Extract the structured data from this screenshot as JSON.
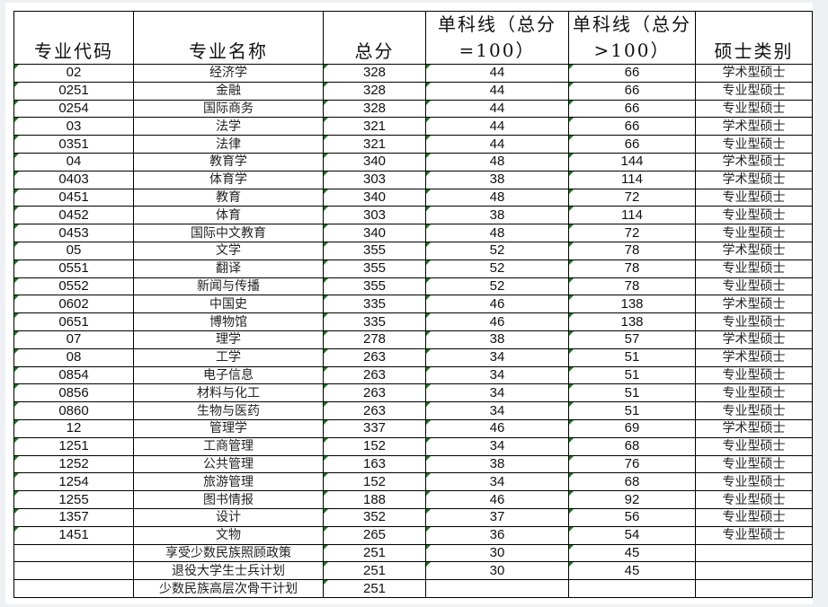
{
  "headers": [
    "专业代码",
    "专业名称",
    "总分",
    "单科线（总分=100）",
    "单科线（总分>100）",
    "硕士类别"
  ],
  "rows": [
    [
      "02",
      "经济学",
      "328",
      "44",
      "66",
      "学术型硕士"
    ],
    [
      "0251",
      "金融",
      "328",
      "44",
      "66",
      "专业型硕士"
    ],
    [
      "0254",
      "国际商务",
      "328",
      "44",
      "66",
      "专业型硕士"
    ],
    [
      "03",
      "法学",
      "321",
      "44",
      "66",
      "学术型硕士"
    ],
    [
      "0351",
      "法律",
      "321",
      "44",
      "66",
      "专业型硕士"
    ],
    [
      "04",
      "教育学",
      "340",
      "48",
      "144",
      "学术型硕士"
    ],
    [
      "0403",
      "体育学",
      "303",
      "38",
      "114",
      "学术型硕士"
    ],
    [
      "0451",
      "教育",
      "340",
      "48",
      "72",
      "专业型硕士"
    ],
    [
      "0452",
      "体育",
      "303",
      "38",
      "114",
      "专业型硕士"
    ],
    [
      "0453",
      "国际中文教育",
      "340",
      "48",
      "72",
      "专业型硕士"
    ],
    [
      "05",
      "文学",
      "355",
      "52",
      "78",
      "学术型硕士"
    ],
    [
      "0551",
      "翻译",
      "355",
      "52",
      "78",
      "专业型硕士"
    ],
    [
      "0552",
      "新闻与传播",
      "355",
      "52",
      "78",
      "专业型硕士"
    ],
    [
      "0602",
      "中国史",
      "335",
      "46",
      "138",
      "学术型硕士"
    ],
    [
      "0651",
      "博物馆",
      "335",
      "46",
      "138",
      "专业型硕士"
    ],
    [
      "07",
      "理学",
      "278",
      "38",
      "57",
      "学术型硕士"
    ],
    [
      "08",
      "工学",
      "263",
      "34",
      "51",
      "学术型硕士"
    ],
    [
      "0854",
      "电子信息",
      "263",
      "34",
      "51",
      "专业型硕士"
    ],
    [
      "0856",
      "材料与化工",
      "263",
      "34",
      "51",
      "专业型硕士"
    ],
    [
      "0860",
      "生物与医药",
      "263",
      "34",
      "51",
      "专业型硕士"
    ],
    [
      "12",
      "管理学",
      "337",
      "46",
      "69",
      "学术型硕士"
    ],
    [
      "1251",
      "工商管理",
      "152",
      "34",
      "68",
      "专业型硕士"
    ],
    [
      "1252",
      "公共管理",
      "163",
      "38",
      "76",
      "专业型硕士"
    ],
    [
      "1254",
      "旅游管理",
      "152",
      "34",
      "68",
      "专业型硕士"
    ],
    [
      "1255",
      "图书情报",
      "188",
      "46",
      "92",
      "专业型硕士"
    ],
    [
      "1357",
      "设计",
      "352",
      "37",
      "56",
      "专业型硕士"
    ],
    [
      "1451",
      "文物",
      "265",
      "36",
      "54",
      "专业型硕士"
    ],
    [
      "",
      "享受少数民族照顾政策",
      "251",
      "30",
      "45",
      ""
    ],
    [
      "",
      "退役大学生士兵计划",
      "251",
      "30",
      "45",
      ""
    ],
    [
      "",
      "少数民族高层次骨干计划",
      "251",
      "",
      "",
      ""
    ]
  ]
}
